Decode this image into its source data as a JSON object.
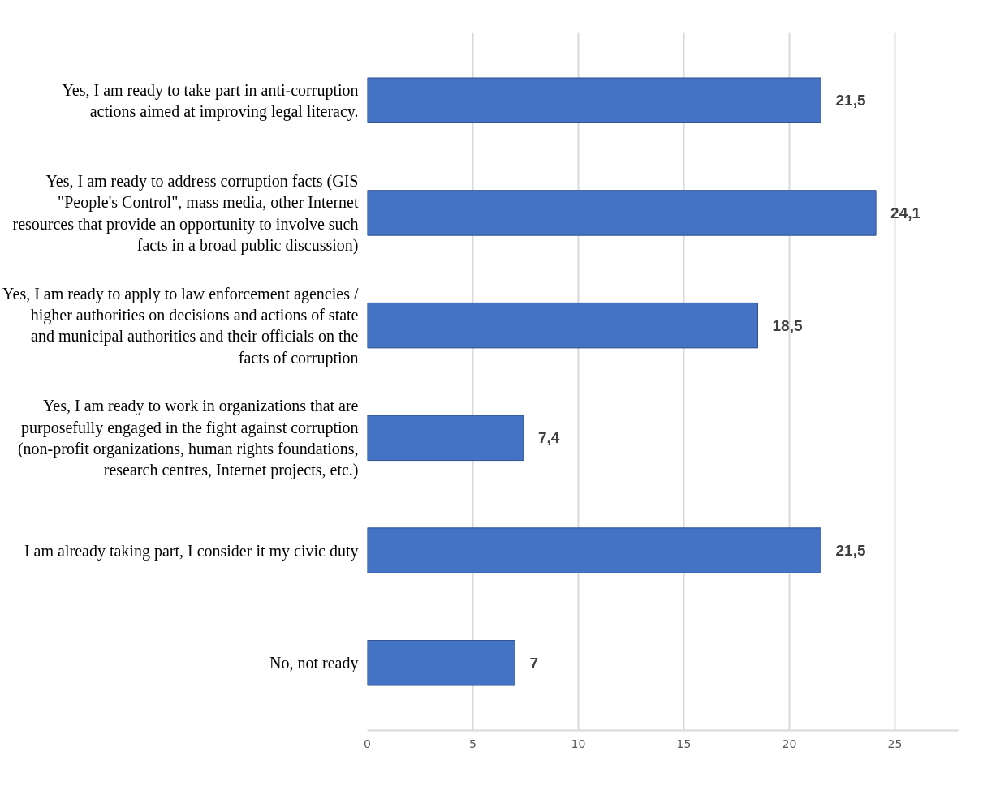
{
  "chart_data": {
    "type": "bar",
    "orientation": "horizontal",
    "categories": [
      "Yes, I am ready to take part in anti-corruption actions aimed at improving legal literacy.",
      "Yes, I am ready to address corruption facts (GIS \"People's Control\", mass media, other Internet resources that provide an opportunity to involve such facts in a broad public discussion)",
      "Yes, I am ready to apply to law enforcement agencies / higher authorities on decisions and actions of state and municipal authorities and their officials on the facts of corruption",
      "Yes, I am ready to work in organizations that are purposefully engaged in the fight against corruption (non-profit organizations, human rights foundations, research centres, Internet projects, etc.)",
      "I am already taking part, I consider it my civic duty",
      "No, not ready"
    ],
    "values": [
      21.5,
      24.1,
      18.5,
      7.4,
      21.5,
      7
    ],
    "value_labels": [
      "21,5",
      "24,1",
      "18,5",
      "7,4",
      "21,5",
      "7"
    ],
    "color": "#4472c4",
    "xlim": [
      0,
      28
    ],
    "xticks": [
      0,
      5,
      10,
      15,
      20,
      25
    ],
    "grid": "x"
  }
}
